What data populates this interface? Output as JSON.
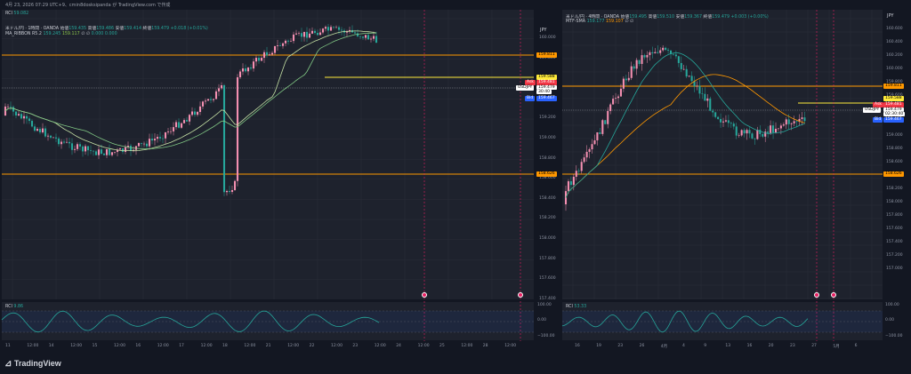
{
  "header": {
    "text": "4月 23, 2026 07:29 UTC+9、cmin8dosksipanda が TradingView.com で作成"
  },
  "left": {
    "top_indicator": {
      "name": "RCI",
      "value": "59.082"
    },
    "currency_label": "JPY",
    "title": {
      "symbol": "米ドル/円 · 1時間 · OANDA",
      "open_label": "始値",
      "open": "159.435",
      "high_label": "高値",
      "high": "159.486",
      "low_label": "安値",
      "low": "159.414",
      "close_label": "終値",
      "close": "159.479",
      "change": "+0.018 (+0.01%)"
    },
    "indicator": {
      "name": "MA_RIBBON R5.2",
      "v1": "159.245",
      "v2": "159.117",
      "icons": "∅ ∅",
      "v3": "0.000",
      "v4": "0.000"
    },
    "y_ticks": [
      "160.000",
      "159.800",
      "159.600",
      "159.400",
      "159.200",
      "159.000",
      "158.800",
      "158.600",
      "158.400",
      "158.200",
      "158.000",
      "157.800",
      "157.600",
      "157.400"
    ],
    "price_tags": {
      "upper_line": "159.811",
      "yellow": "159.588",
      "ask_label": "Ask",
      "ask": "159.481",
      "symbol_label": "USDJPY",
      "price": "159.479",
      "countdown": "30:40",
      "bid_label": "Bid",
      "bid": "159.467",
      "lower_line": "158.626"
    },
    "rci": {
      "name": "RCI",
      "value": "9.86",
      "ticks": [
        "100.00",
        "0.00",
        "−100.00"
      ]
    },
    "x_ticks": [
      "11",
      "12:00",
      "14",
      "12:00",
      "15",
      "12:00",
      "16",
      "12:00",
      "17",
      "12:00",
      "18",
      "12:00",
      "21",
      "12:00",
      "22",
      "12:00",
      "23",
      "12:00",
      "24",
      "12:00",
      "25",
      "12:00",
      "28",
      "12:00"
    ]
  },
  "right": {
    "currency_label": "JPY",
    "title": {
      "symbol": "米ドル/円 · 4時間 · OANDA",
      "open_label": "始値",
      "open": "159.495",
      "high_label": "高値",
      "high": "159.510",
      "low_label": "安値",
      "low": "159.367",
      "close_label": "終値",
      "close": "159.479",
      "change": "+0.003 (+0.00%)"
    },
    "indicator": {
      "name": "MTF-SMA",
      "v1": "159.177",
      "v2": "159.107",
      "icons": "∅ ∅"
    },
    "y_ticks": [
      "160.600",
      "160.400",
      "160.200",
      "160.000",
      "159.800",
      "159.600",
      "159.400",
      "159.200",
      "159.000",
      "158.800",
      "158.600",
      "158.400",
      "158.200",
      "158.000",
      "157.800",
      "157.600",
      "157.400",
      "157.200",
      "157.000"
    ],
    "price_tags": {
      "upper_line": "159.811",
      "yellow": "159.588",
      "ask_label": "Ask",
      "ask": "159.481",
      "symbol_label": "USDJPY",
      "price": "159.479",
      "countdown": "02:30:40",
      "bid_label": "Bid",
      "bid": "159.467",
      "lower_line": "158.626"
    },
    "rci": {
      "name": "RCI",
      "value": "53.33",
      "ticks": [
        "100.00",
        "0.00",
        "−100.00"
      ]
    },
    "x_ticks": [
      "16",
      "19",
      "23",
      "26",
      "4月",
      "4",
      "9",
      "13",
      "16",
      "20",
      "23",
      "27",
      "5月",
      "6"
    ]
  },
  "logo": {
    "text": "TradingView"
  },
  "colors": {
    "bg": "#131722",
    "pane": "#1e222d",
    "up": "#f48fb1",
    "down": "#26a69a",
    "orange": "#ff9800",
    "yellow": "#ffeb3b",
    "ask": "#f23645",
    "bid": "#2962ff",
    "rci": "#26a69a"
  }
}
